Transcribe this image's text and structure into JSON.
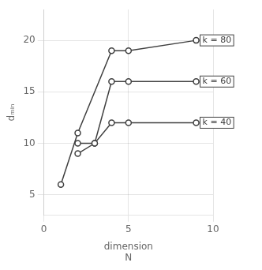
{
  "chart_data": {
    "type": "line",
    "xlabel": [
      "dimension",
      "N"
    ],
    "ylabel": "dₘᵢₙ",
    "color": "#404040",
    "marker": "circle",
    "series": [
      {
        "x": [
          1,
          2,
          4,
          5,
          9
        ],
        "values": [
          6,
          11,
          19,
          19,
          20
        ]
      },
      {
        "x": [
          2,
          3,
          4,
          5,
          9
        ],
        "values": [
          10,
          10,
          16,
          16,
          16
        ]
      },
      {
        "x": [
          2,
          3,
          4,
          5,
          9
        ],
        "values": [
          9,
          10,
          12,
          12,
          12
        ]
      }
    ],
    "annotations": [
      {
        "x": 9,
        "y": 20,
        "text": "k = 80"
      },
      {
        "x": 9,
        "y": 16,
        "text": "k = 60"
      },
      {
        "x": 9,
        "y": 12,
        "text": "k = 40"
      }
    ],
    "xlim": [
      0,
      10
    ],
    "xticks": [
      0,
      5,
      10
    ],
    "ylim": [
      3,
      23
    ],
    "yticks": [
      5,
      10,
      15,
      20
    ],
    "grid": true
  }
}
